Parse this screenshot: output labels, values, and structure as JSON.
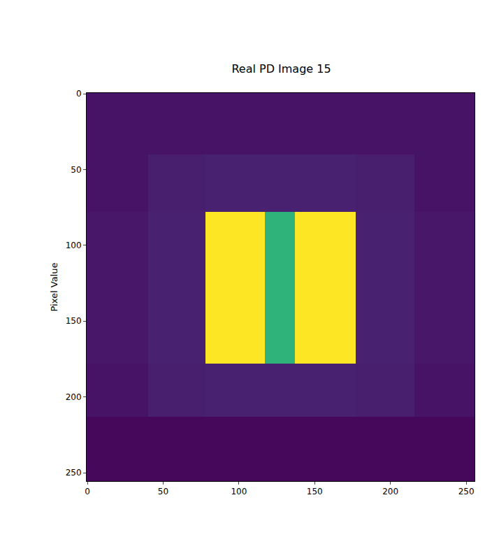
{
  "chart_data": {
    "type": "heatmap",
    "title": "Real PD Image 15",
    "y_label": "Pixel Value",
    "color": "Viridis",
    "x_edges": [
      -0.5,
      40,
      78,
      117,
      137,
      177,
      216,
      255.5
    ],
    "y_edges": [
      -0.5,
      40,
      78,
      178,
      213,
      255.5
    ],
    "cells": [
      [
        0.05,
        0.05,
        0.05,
        0.05,
        0.05,
        0.05,
        0.05
      ],
      [
        0.05,
        0.08,
        0.09,
        0.09,
        0.09,
        0.08,
        0.05
      ],
      [
        0.06,
        0.09,
        1.0,
        0.65,
        1.0,
        0.09,
        0.06
      ],
      [
        0.05,
        0.08,
        0.09,
        0.09,
        0.09,
        0.08,
        0.05
      ],
      [
        0.02,
        0.02,
        0.02,
        0.02,
        0.02,
        0.02,
        0.02
      ]
    ],
    "zlim": [
      0,
      1
    ],
    "xlim": [
      -0.5,
      255.5
    ],
    "ylim": [
      255.5,
      -0.5
    ],
    "xticks": [
      0,
      50,
      100,
      150,
      200,
      250
    ],
    "yticks": [
      0,
      50,
      100,
      150,
      200,
      250
    ],
    "grid": false
  }
}
